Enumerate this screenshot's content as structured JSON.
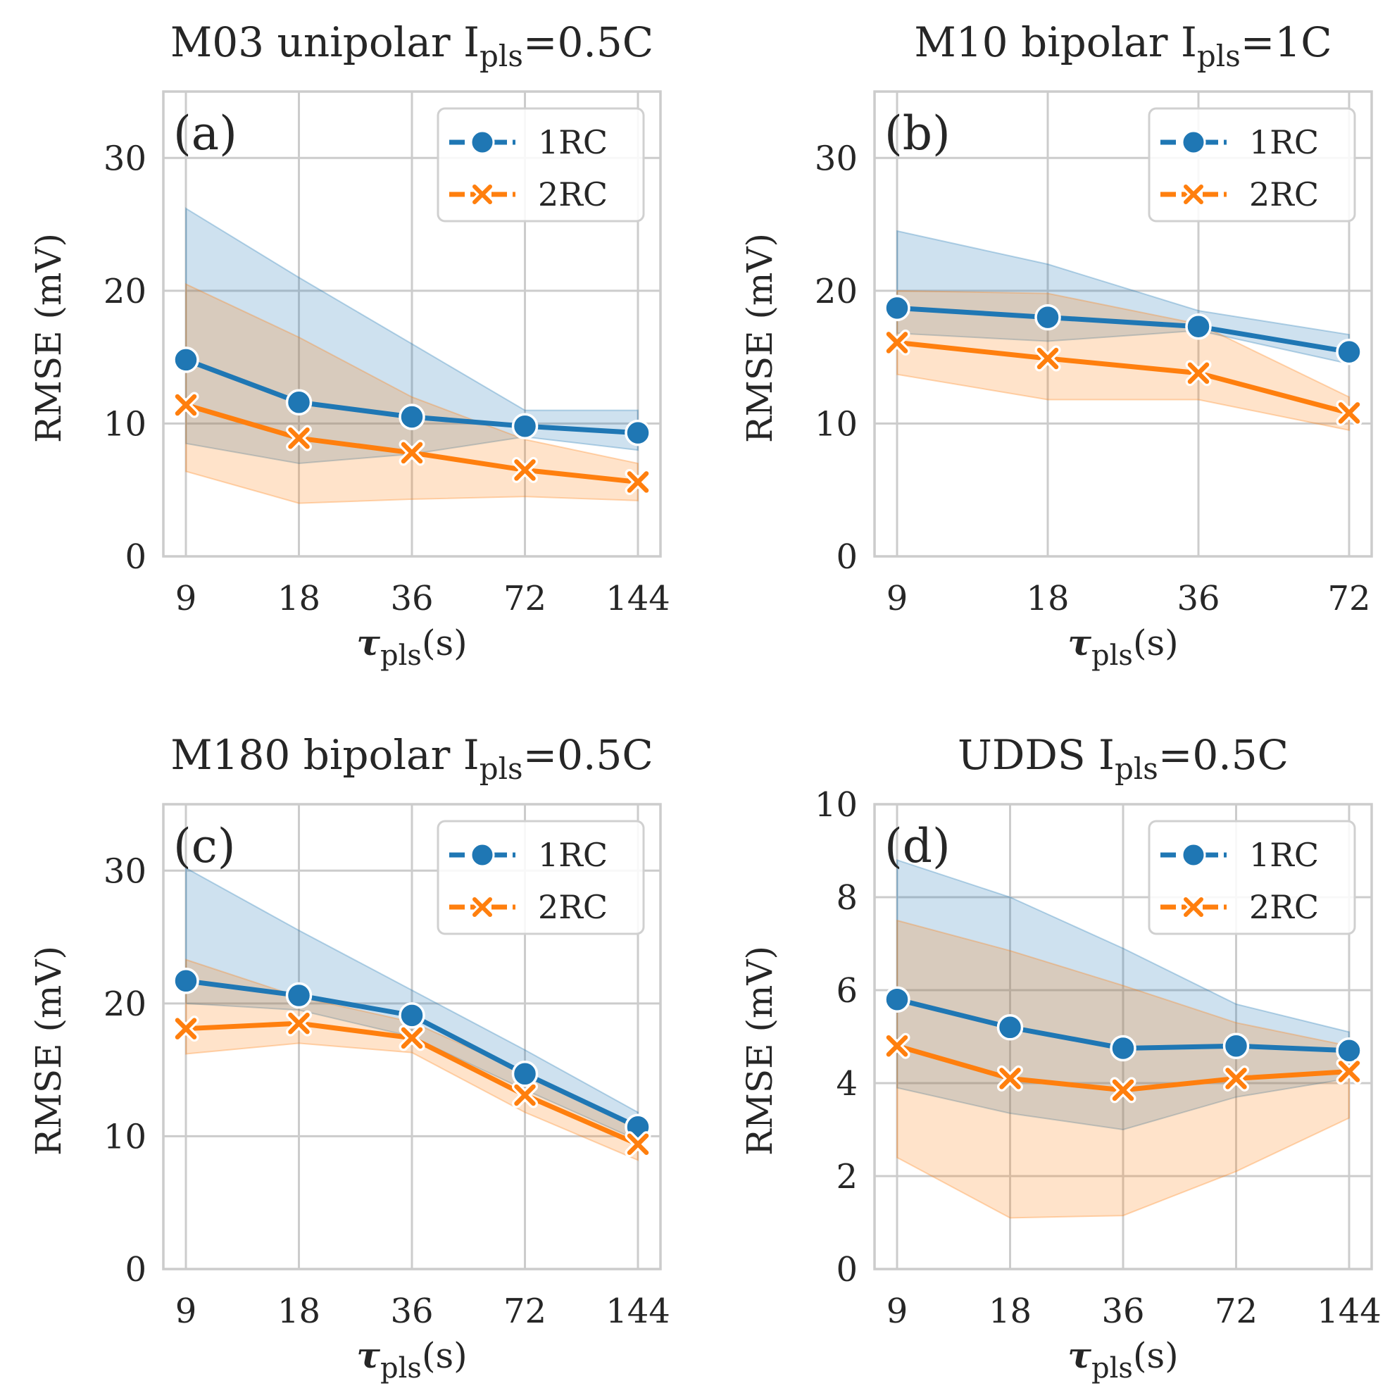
{
  "figure": {
    "series_styles": {
      "1RC": {
        "color": "#1f77b4",
        "marker": "circle"
      },
      "2RC": {
        "color": "#ff7f0e",
        "marker": "x"
      }
    },
    "legend_labels": [
      "1RC",
      "2RC"
    ],
    "ylabel": "RMSE (mV)",
    "xlabel": {
      "main": "τ",
      "sub": "pls",
      "unit": "(s)"
    }
  },
  "chart_data": [
    {
      "type": "line",
      "panel_label": "(a)",
      "title": {
        "main": "M03 unipolar I",
        "sub": "pls",
        "tail": "=0.5C"
      },
      "xlabel": "τpls(s)",
      "ylabel": "RMSE (mV)",
      "categories": [
        "9",
        "18",
        "36",
        "72",
        "144"
      ],
      "ylim": [
        0,
        35
      ],
      "yticks": [
        0,
        10,
        20,
        30
      ],
      "grid": true,
      "legend": "top-right",
      "series": [
        {
          "name": "1RC",
          "values": [
            14.8,
            11.6,
            10.5,
            9.8,
            9.3
          ],
          "band_low": [
            8.5,
            7.0,
            7.7,
            9.0,
            8.0
          ],
          "band_high": [
            26.2,
            21.0,
            16.0,
            11.0,
            11.0
          ]
        },
        {
          "name": "2RC",
          "values": [
            11.4,
            8.9,
            7.8,
            6.5,
            5.6
          ],
          "band_low": [
            6.4,
            4.0,
            4.3,
            4.5,
            4.2
          ],
          "band_high": [
            20.5,
            16.5,
            12.0,
            8.8,
            7.0
          ]
        }
      ]
    },
    {
      "type": "line",
      "panel_label": "(b)",
      "title": {
        "main": "M10 bipolar I",
        "sub": "pls",
        "tail": "=1C"
      },
      "xlabel": "τpls(s)",
      "ylabel": "RMSE (mV)",
      "categories": [
        "9",
        "18",
        "36",
        "72"
      ],
      "ylim": [
        0,
        35
      ],
      "yticks": [
        0,
        10,
        20,
        30
      ],
      "grid": true,
      "legend": "top-right",
      "series": [
        {
          "name": "1RC",
          "values": [
            18.7,
            18.0,
            17.3,
            15.4
          ],
          "band_low": [
            16.8,
            16.2,
            17.0,
            14.5
          ],
          "band_high": [
            24.5,
            22.0,
            18.5,
            16.7
          ]
        },
        {
          "name": "2RC",
          "values": [
            16.1,
            14.9,
            13.8,
            10.8
          ],
          "band_low": [
            13.7,
            11.8,
            11.8,
            9.5
          ],
          "band_high": [
            20.0,
            19.8,
            17.5,
            12.0
          ]
        }
      ]
    },
    {
      "type": "line",
      "panel_label": "(c)",
      "title": {
        "main": "M180 bipolar I",
        "sub": "pls",
        "tail": "=0.5C"
      },
      "xlabel": "τpls(s)",
      "ylabel": "RMSE (mV)",
      "categories": [
        "9",
        "18",
        "36",
        "72",
        "144"
      ],
      "ylim": [
        0,
        35
      ],
      "yticks": [
        0,
        10,
        20,
        30
      ],
      "grid": true,
      "legend": "top-right",
      "series": [
        {
          "name": "1RC",
          "values": [
            21.7,
            20.6,
            19.1,
            14.7,
            10.7
          ],
          "band_low": [
            20.0,
            19.5,
            17.5,
            13.5,
            9.7
          ],
          "band_high": [
            30.2,
            25.5,
            21.0,
            16.5,
            11.8
          ]
        },
        {
          "name": "2RC",
          "values": [
            18.1,
            18.5,
            17.4,
            13.1,
            9.4
          ],
          "band_low": [
            16.2,
            17.0,
            16.3,
            11.8,
            8.2
          ],
          "band_high": [
            23.3,
            20.5,
            18.6,
            14.8,
            10.5
          ]
        }
      ]
    },
    {
      "type": "line",
      "panel_label": "(d)",
      "title": {
        "main": "UDDS I",
        "sub": "pls",
        "tail": "=0.5C"
      },
      "xlabel": "τpls(s)",
      "ylabel": "RMSE (mV)",
      "categories": [
        "9",
        "18",
        "36",
        "72",
        "144"
      ],
      "ylim": [
        0,
        10
      ],
      "yticks": [
        0,
        2,
        4,
        6,
        8,
        10
      ],
      "grid": true,
      "legend": "top-right",
      "series": [
        {
          "name": "1RC",
          "values": [
            5.8,
            5.2,
            4.75,
            4.8,
            4.7
          ],
          "band_low": [
            3.9,
            3.35,
            3.0,
            3.7,
            4.1
          ],
          "band_high": [
            8.8,
            8.0,
            6.9,
            5.7,
            5.1
          ]
        },
        {
          "name": "2RC",
          "values": [
            4.8,
            4.1,
            3.85,
            4.1,
            4.25
          ],
          "band_low": [
            2.4,
            1.1,
            1.15,
            2.1,
            3.25
          ],
          "band_high": [
            7.5,
            6.85,
            6.1,
            5.3,
            4.8
          ]
        }
      ]
    }
  ]
}
